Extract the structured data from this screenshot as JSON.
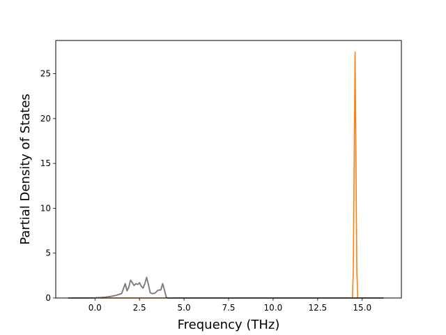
{
  "chart_data": {
    "type": "line",
    "title": "",
    "xlabel": "Frequency (THz)",
    "ylabel": "Partial Density of States",
    "xlim": [
      -2.2,
      17.2
    ],
    "ylim": [
      0,
      28.7
    ],
    "xticks": [
      0.0,
      2.5,
      5.0,
      7.5,
      10.0,
      12.5,
      15.0
    ],
    "xtick_labels": [
      "0.0",
      "2.5",
      "5.0",
      "7.5",
      "10.0",
      "12.5",
      "15.0"
    ],
    "yticks": [
      0,
      5,
      10,
      15,
      20,
      25
    ],
    "ytick_labels": [
      "0",
      "5",
      "10",
      "15",
      "20",
      "25"
    ],
    "grid": false,
    "legend": "none",
    "series": [
      {
        "color": "#1f77b4",
        "x": [
          -1.5,
          -0.2,
          0.0,
          0.3,
          0.6,
          0.9,
          1.2,
          1.5,
          1.7,
          1.8,
          1.9,
          2.0,
          2.1,
          2.2,
          2.3,
          2.4,
          2.5,
          2.6,
          2.7,
          2.8,
          2.9,
          3.0,
          3.1,
          3.2,
          3.3,
          3.4,
          3.5,
          3.6,
          3.7,
          3.8,
          3.9,
          4.0,
          4.1,
          16.2
        ],
        "y": [
          0,
          0,
          0.02,
          0.05,
          0.1,
          0.18,
          0.3,
          0.5,
          1.6,
          0.8,
          1.2,
          2.0,
          1.7,
          1.4,
          1.6,
          1.5,
          1.7,
          1.3,
          1.1,
          1.6,
          2.3,
          1.5,
          0.6,
          0.5,
          0.5,
          0.6,
          0.8,
          0.9,
          0.9,
          1.6,
          0.9,
          0.1,
          0,
          0
        ]
      },
      {
        "color": "#ff7f0e",
        "x": [
          -1.5,
          14.45,
          14.5,
          14.6,
          14.7,
          14.75,
          16.2
        ],
        "y": [
          0,
          0,
          3.0,
          27.4,
          3.0,
          0,
          0
        ]
      },
      {
        "color": "#2ca02c",
        "x": [
          -1.5,
          -0.2,
          0.0,
          0.3,
          0.6,
          0.9,
          1.2,
          1.5,
          1.7,
          1.8,
          1.9,
          2.0,
          2.1,
          2.2,
          2.3,
          2.4,
          2.5,
          2.6,
          2.7,
          2.8,
          2.9,
          3.0,
          3.1,
          3.2,
          3.3,
          3.4,
          3.5,
          3.6,
          3.7,
          3.8,
          3.9,
          4.0,
          4.1,
          16.2
        ],
        "y": [
          0,
          0,
          0.02,
          0.05,
          0.1,
          0.18,
          0.3,
          0.5,
          1.6,
          0.8,
          1.2,
          2.0,
          1.7,
          1.4,
          1.6,
          1.5,
          1.7,
          1.3,
          1.1,
          1.6,
          2.3,
          1.5,
          0.6,
          0.5,
          0.5,
          0.6,
          0.8,
          0.9,
          0.9,
          1.6,
          0.9,
          0.1,
          0,
          0
        ]
      },
      {
        "color": "#d62728",
        "x": [
          -1.5,
          -0.2,
          0.0,
          0.3,
          0.6,
          0.9,
          1.2,
          1.5,
          1.7,
          1.8,
          1.9,
          2.0,
          2.1,
          2.2,
          2.3,
          2.4,
          2.5,
          2.6,
          2.7,
          2.8,
          2.9,
          3.0,
          3.1,
          3.2,
          3.3,
          3.4,
          3.5,
          3.6,
          3.7,
          3.8,
          3.9,
          4.0,
          4.1,
          16.2
        ],
        "y": [
          0,
          0,
          0.02,
          0.05,
          0.1,
          0.18,
          0.3,
          0.5,
          1.6,
          0.8,
          1.2,
          2.0,
          1.7,
          1.4,
          1.6,
          1.5,
          1.7,
          1.3,
          1.1,
          1.6,
          2.3,
          1.5,
          0.6,
          0.5,
          0.5,
          0.6,
          0.8,
          0.9,
          0.9,
          1.6,
          0.9,
          0.1,
          0,
          0
        ]
      },
      {
        "color": "#7f7f7f",
        "x": [
          -1.5,
          -0.2,
          0.0,
          0.3,
          0.6,
          0.9,
          1.2,
          1.5,
          1.7,
          1.8,
          1.9,
          2.0,
          2.1,
          2.2,
          2.3,
          2.4,
          2.5,
          2.6,
          2.7,
          2.8,
          2.9,
          3.0,
          3.1,
          3.2,
          3.3,
          3.4,
          3.5,
          3.6,
          3.7,
          3.8,
          3.9,
          4.0,
          4.1,
          16.2
        ],
        "y": [
          0,
          0,
          0.02,
          0.05,
          0.1,
          0.18,
          0.3,
          0.5,
          1.6,
          0.8,
          1.2,
          2.0,
          1.7,
          1.4,
          1.6,
          1.5,
          1.7,
          1.3,
          1.1,
          1.6,
          2.3,
          1.5,
          0.6,
          0.5,
          0.5,
          0.6,
          0.8,
          0.9,
          0.9,
          1.6,
          0.9,
          0.1,
          0,
          0
        ]
      }
    ]
  }
}
